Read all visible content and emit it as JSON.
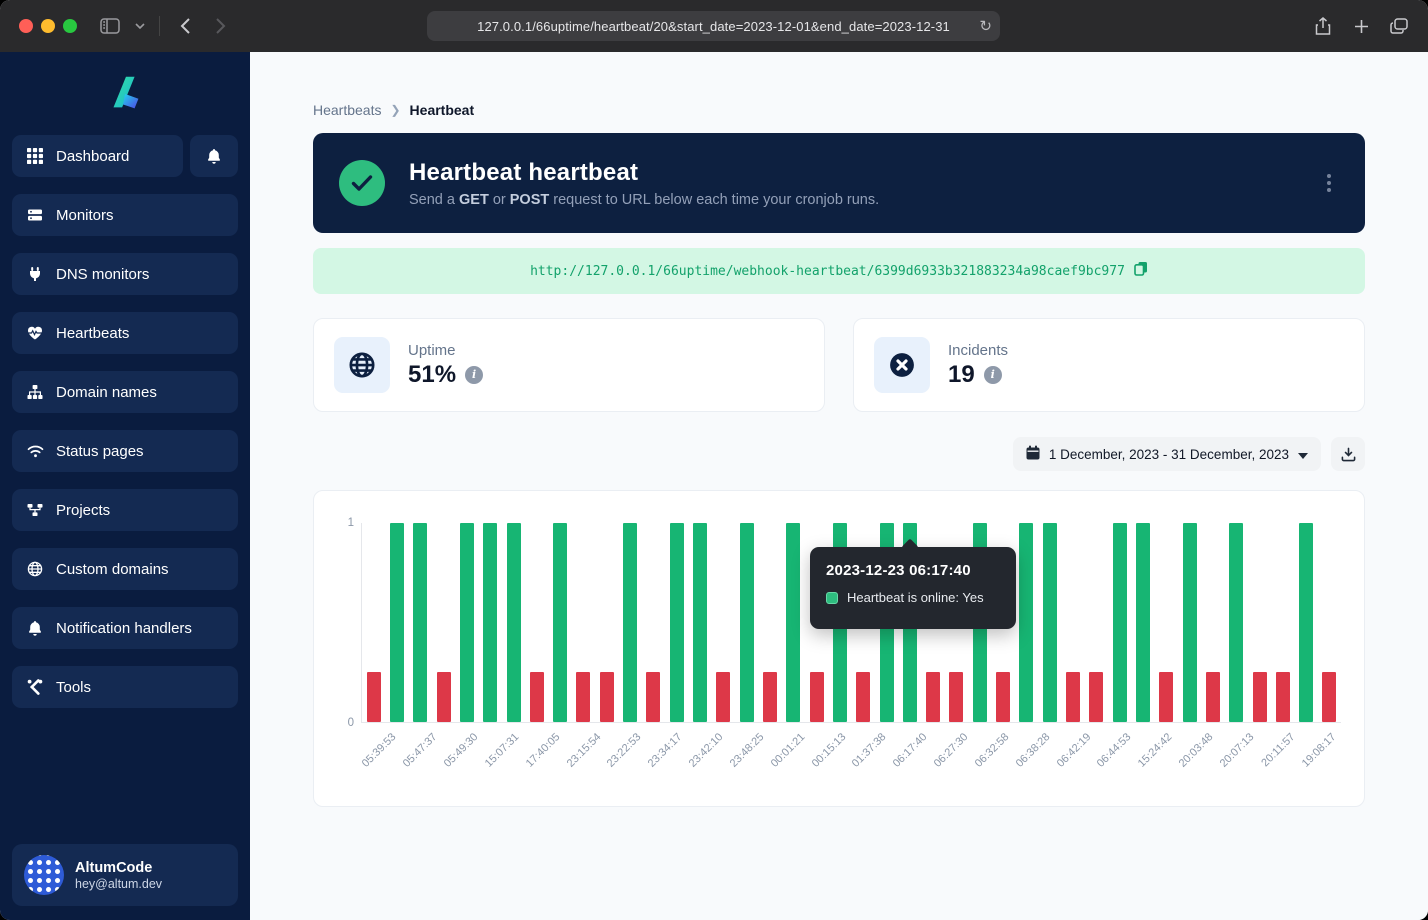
{
  "browser": {
    "url": "127.0.0.1/66uptime/heartbeat/20&start_date=2023-12-01&end_date=2023-12-31"
  },
  "sidebar": {
    "items": [
      {
        "label": "Dashboard",
        "icon": "grid-icon"
      },
      {
        "label": "Monitors",
        "icon": "server-icon"
      },
      {
        "label": "DNS monitors",
        "icon": "plug-icon"
      },
      {
        "label": "Heartbeats",
        "icon": "heart-pulse-icon"
      },
      {
        "label": "Domain names",
        "icon": "sitemap-icon"
      },
      {
        "label": "Status pages",
        "icon": "wifi-icon"
      },
      {
        "label": "Projects",
        "icon": "diagram-icon"
      },
      {
        "label": "Custom domains",
        "icon": "globe-icon"
      },
      {
        "label": "Notification handlers",
        "icon": "bell-icon"
      },
      {
        "label": "Tools",
        "icon": "tools-icon"
      }
    ],
    "user": {
      "name": "AltumCode",
      "email": "hey@altum.dev"
    }
  },
  "breadcrumb": {
    "parent": "Heartbeats",
    "current": "Heartbeat"
  },
  "header": {
    "title": "Heartbeat heartbeat",
    "subtitle": {
      "p1": "Send a ",
      "get": "GET",
      "p2": " or ",
      "post": "POST",
      "p3": " request to URL below each time your cronjob runs."
    }
  },
  "webhook": {
    "url": "http://127.0.0.1/66uptime/webhook-heartbeat/6399d6933b321883234a98caef9bc977"
  },
  "stats": {
    "uptime": {
      "label": "Uptime",
      "value": "51%"
    },
    "incidents": {
      "label": "Incidents",
      "value": "19"
    }
  },
  "daterange": {
    "label": "1 December, 2023 - 31 December, 2023"
  },
  "chart_data": {
    "type": "bar",
    "title": "Heartbeat online/offline history",
    "ylim": [
      0,
      1
    ],
    "yticks": [
      "1",
      "0"
    ],
    "legend_position": "tooltip-only",
    "grid": false,
    "colors": {
      "online": "#17b573",
      "offline": "#dd3848"
    },
    "offline_bar_height": 0.25,
    "categories": [
      "05:39:53",
      "05:47:37",
      "05:49:30",
      "15:07:31",
      "17:40:05",
      "23:15:54",
      "23:22:53",
      "23:34:17",
      "23:42:10",
      "23:48:25",
      "00:01:21",
      "00:15:13",
      "01:37:38",
      "06:17:40",
      "06:27:30",
      "06:32:58",
      "06:38:28",
      "06:42:19",
      "06:44:53",
      "15:24:42",
      "20:03:48",
      "20:07:13",
      "20:11:57",
      "19:08:17"
    ],
    "series": [
      {
        "name": "Heartbeat is online",
        "values": [
          0,
          1,
          1,
          0,
          1,
          1,
          1,
          0,
          1,
          0,
          0,
          1,
          0,
          1,
          1,
          0,
          1,
          0,
          1,
          0,
          1,
          0,
          1,
          1,
          0,
          0,
          1,
          0,
          1,
          1,
          0,
          0,
          1,
          1,
          0,
          1,
          0,
          1,
          0,
          0,
          1,
          0
        ]
      }
    ],
    "tooltip": {
      "title": "2023-12-23 06:17:40",
      "text": "Heartbeat is online: Yes",
      "bar_index": 24
    }
  }
}
